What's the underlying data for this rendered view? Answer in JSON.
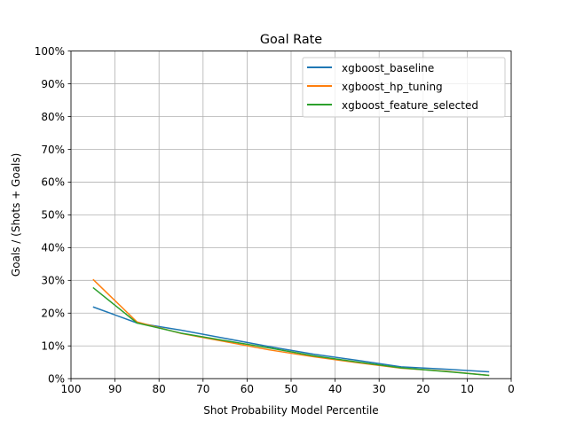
{
  "chart_data": {
    "type": "line",
    "title": "Goal Rate",
    "xlabel": "Shot Probability Model Percentile",
    "ylabel": "Goals / (Shots + Goals)",
    "xlim": [
      100,
      0
    ],
    "ylim": [
      0,
      100
    ],
    "x_inverted": true,
    "x_ticks": [
      100,
      90,
      80,
      70,
      60,
      50,
      40,
      30,
      20,
      10,
      0
    ],
    "y_ticks": [
      0,
      10,
      20,
      30,
      40,
      50,
      60,
      70,
      80,
      90,
      100
    ],
    "y_tick_labels": [
      "0%",
      "10%",
      "20%",
      "30%",
      "40%",
      "50%",
      "60%",
      "70%",
      "80%",
      "90%",
      "100%"
    ],
    "grid": true,
    "legend_position": "top-right",
    "x": [
      95,
      85,
      75,
      65,
      55,
      45,
      35,
      25,
      15,
      5
    ],
    "series": [
      {
        "name": "xgboost_baseline",
        "color": "#1f77b4",
        "values": [
          21.9,
          17.0,
          14.8,
          12.3,
          9.8,
          7.5,
          5.6,
          3.6,
          2.9,
          2.1
        ]
      },
      {
        "name": "xgboost_hp_tuning",
        "color": "#ff7f0e",
        "values": [
          30.3,
          17.3,
          13.8,
          11.3,
          8.8,
          6.7,
          4.9,
          3.2,
          2.3,
          1.0
        ]
      },
      {
        "name": "xgboost_feature_selected",
        "color": "#2ca02c",
        "values": [
          27.8,
          17.0,
          13.9,
          11.6,
          9.4,
          7.0,
          5.1,
          3.3,
          2.2,
          1.0
        ]
      }
    ]
  }
}
